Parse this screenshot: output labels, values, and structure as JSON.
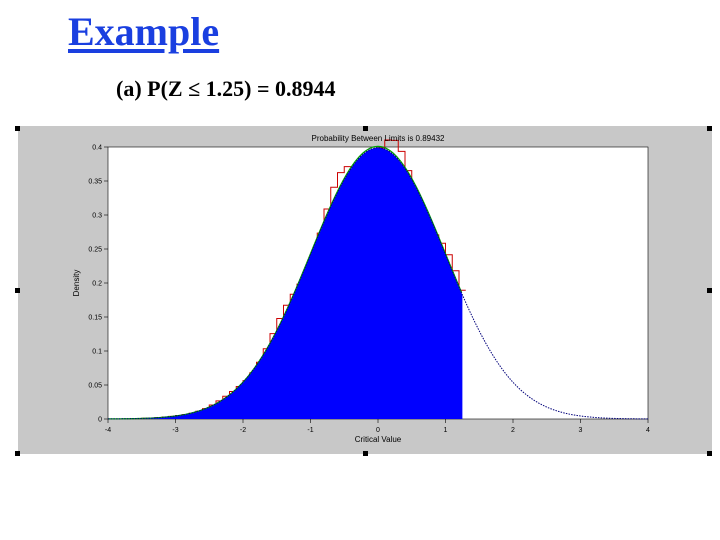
{
  "slide": {
    "title": "Example",
    "subtitle": "(a)  P(Z ≤ 1.25) = 0.8944"
  },
  "colors": {
    "title": "#1a3fe0",
    "fill": "#0000ff",
    "curve": "#00007a",
    "histogram": "#cc0000",
    "fit_line": "#00a000",
    "figure_bg": "#c8c8c8"
  },
  "chart_data": {
    "type": "area",
    "title": "Probability Between Limits is 0.89432",
    "xlabel": "Critical Value",
    "ylabel": "Density",
    "xlim": [
      -4,
      4
    ],
    "ylim": [
      0,
      0.4
    ],
    "x_ticks": [
      "-4",
      "-3",
      "-2",
      "-1",
      "0",
      "1",
      "2",
      "3",
      "4"
    ],
    "y_ticks": [
      "0",
      "0.05",
      "0.1",
      "0.15",
      "0.2",
      "0.25",
      "0.3",
      "0.35",
      "0.4"
    ],
    "distribution": "standard-normal",
    "shaded_region": {
      "from": -4,
      "to": 1.25
    },
    "probability": 0.89432,
    "grid": false,
    "series": [
      {
        "x": [
          -4,
          -3.5,
          -3,
          -2.5,
          -2,
          -1.5,
          -1,
          -0.5,
          0,
          0.5,
          1,
          1.25,
          1.5,
          2,
          2.5,
          3,
          3.5,
          4
        ],
        "y": [
          0.0001,
          0.0009,
          0.0044,
          0.0175,
          0.054,
          0.1295,
          0.242,
          0.3521,
          0.3989,
          0.3521,
          0.242,
          0.1826,
          0.1295,
          0.054,
          0.0175,
          0.0044,
          0.0009,
          0.0001
        ]
      }
    ]
  }
}
